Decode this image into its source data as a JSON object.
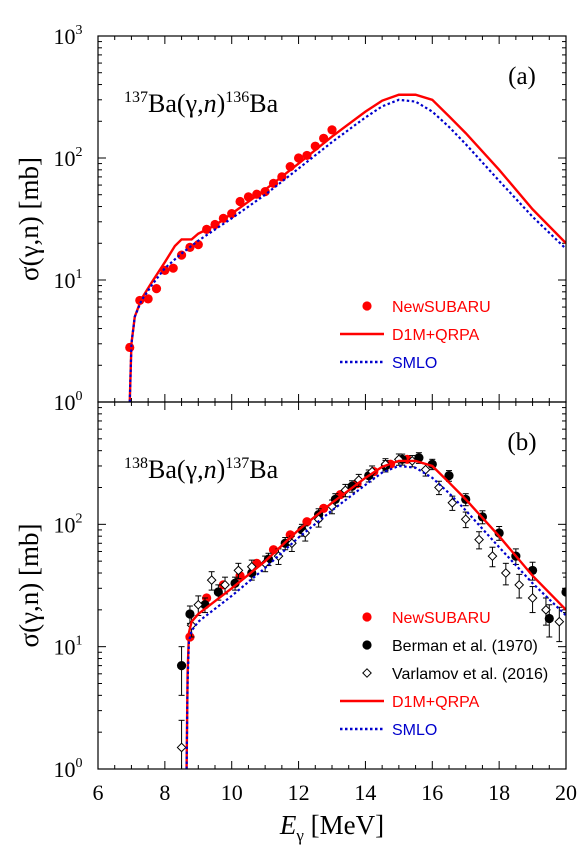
{
  "chart_data": [
    {
      "type": "scatter",
      "panel_label": "(a)",
      "reaction": {
        "pre_mass": "137",
        "target": "Ba",
        "channel_open": "(",
        "gamma": "γ",
        "comma": ",",
        "neutron": "n",
        "channel_close": ")",
        "post_mass": "136",
        "product": "Ba"
      },
      "ylabel": "σ(γ,n) [mb]",
      "y_scale": "log",
      "xlim": [
        6,
        20
      ],
      "ylim": [
        1,
        1000
      ],
      "ytick_labels": [
        {
          "mant": "10",
          "exp": "0"
        },
        {
          "mant": "10",
          "exp": "1"
        },
        {
          "mant": "10",
          "exp": "2"
        },
        {
          "mant": "10",
          "exp": "3"
        }
      ],
      "legend_position": "bottom-right",
      "legend": [
        {
          "name": "NewSUBARU",
          "color": "#ff0000",
          "marker": "filled-circle"
        },
        {
          "name": "D1M+QRPA",
          "color": "#ff0000",
          "marker": "solid-line"
        },
        {
          "name": "SMLO",
          "color": "#0000cc",
          "marker": "dotted-line"
        }
      ],
      "series": [
        {
          "name": "NewSUBARU",
          "kind": "points",
          "color": "#ff0000",
          "x": [
            6.95,
            7.25,
            7.5,
            7.75,
            8.0,
            8.25,
            8.5,
            8.75,
            9.0,
            9.25,
            9.5,
            9.75,
            10.0,
            10.25,
            10.5,
            10.75,
            11.0,
            11.25,
            11.5,
            11.75,
            12.0,
            12.25,
            12.5,
            12.75,
            13.0
          ],
          "y": [
            2.8,
            6.8,
            7.0,
            8.5,
            12.0,
            12.5,
            16.0,
            18.5,
            19.5,
            26.0,
            28.5,
            32.0,
            35.0,
            44.0,
            48.0,
            50.5,
            53.0,
            62.0,
            70.0,
            85.0,
            100.0,
            105.0,
            125.0,
            145.0,
            170.0
          ]
        },
        {
          "name": "D1M+QRPA",
          "kind": "line",
          "color": "#ff0000",
          "dash": "solid",
          "x": [
            6.95,
            7.0,
            7.1,
            7.3,
            7.6,
            8.0,
            8.3,
            8.5,
            8.8,
            9.0,
            9.5,
            10.0,
            11.0,
            12.0,
            13.0,
            14.0,
            14.5,
            15.0,
            15.5,
            16.0,
            16.5,
            17.0,
            18.0,
            19.0,
            20.0
          ],
          "y": [
            1.0,
            3.0,
            5.0,
            7.0,
            9.5,
            14.0,
            19.0,
            21.5,
            21.5,
            24.0,
            28.0,
            35.0,
            55.0,
            90.0,
            150.0,
            240.0,
            295.0,
            330.0,
            330.0,
            300.0,
            220.0,
            160.0,
            80.0,
            38.0,
            20.0
          ]
        },
        {
          "name": "SMLO",
          "kind": "line",
          "color": "#0000cc",
          "dash": "dotted",
          "x": [
            6.95,
            7.0,
            7.1,
            7.3,
            7.6,
            8.0,
            8.5,
            9.0,
            10.0,
            11.0,
            12.0,
            13.0,
            14.0,
            14.5,
            15.0,
            15.5,
            16.0,
            16.5,
            17.0,
            18.0,
            19.0,
            20.0
          ],
          "y": [
            1.0,
            3.0,
            5.0,
            6.8,
            9.0,
            12.5,
            16.5,
            21.0,
            32.0,
            50.0,
            82.0,
            135.0,
            215.0,
            265.0,
            300.0,
            290.0,
            240.0,
            180.0,
            130.0,
            65.0,
            33.0,
            18.0
          ]
        }
      ]
    },
    {
      "type": "scatter",
      "panel_label": "(b)",
      "reaction": {
        "pre_mass": "138",
        "target": "Ba",
        "channel_open": "(",
        "gamma": "γ",
        "comma": ",",
        "neutron": "n",
        "channel_close": ")",
        "post_mass": "137",
        "product": "Ba"
      },
      "ylabel": "σ(γ,n) [mb]",
      "xlabel": {
        "main": "E",
        "sub": "γ",
        "unit": " [MeV]"
      },
      "y_scale": "log",
      "xlim": [
        6,
        20
      ],
      "ylim": [
        1,
        1000
      ],
      "xtick_labels": [
        "6",
        "8",
        "10",
        "12",
        "14",
        "16",
        "18",
        "20"
      ],
      "ytick_labels": [
        {
          "mant": "10",
          "exp": "0"
        },
        {
          "mant": "10",
          "exp": "1"
        },
        {
          "mant": "10",
          "exp": "2"
        }
      ],
      "legend_position": "bottom-right",
      "legend": [
        {
          "name": "NewSUBARU",
          "color": "#ff0000",
          "marker": "filled-circle"
        },
        {
          "name": "Berman et al. (1970)",
          "color": "#000000",
          "marker": "filled-circle"
        },
        {
          "name": "Varlamov et al. (2016)",
          "color": "#000000",
          "marker": "open-diamond"
        },
        {
          "name": "D1M+QRPA",
          "color": "#ff0000",
          "marker": "solid-line"
        },
        {
          "name": "SMLO",
          "color": "#0000cc",
          "marker": "dotted-line"
        }
      ],
      "series": [
        {
          "name": "NewSUBARU",
          "kind": "points",
          "color": "#ff0000",
          "x": [
            8.75,
            9.25,
            9.75,
            10.25,
            10.75,
            11.25,
            11.75,
            12.25,
            12.75,
            13.25,
            13.75,
            14.25,
            14.75,
            15.25
          ],
          "y": [
            12.0,
            25.0,
            32.0,
            38.0,
            48.0,
            62.0,
            82.0,
            105.0,
            135.0,
            175.0,
            215.0,
            270.0,
            310.0,
            340.0
          ]
        },
        {
          "name": "Berman et al. (1970)",
          "kind": "points",
          "color": "#000000",
          "x": [
            8.5,
            8.75,
            9.2,
            9.6,
            10.1,
            10.6,
            11.1,
            11.6,
            12.1,
            12.6,
            13.1,
            13.6,
            14.1,
            14.6,
            15.1,
            15.6,
            16.0,
            16.5,
            17.0,
            17.5,
            18.0,
            18.5,
            19.0,
            19.5,
            20.0
          ],
          "y": [
            7.0,
            18.5,
            22.0,
            28.0,
            33.0,
            40.0,
            52.0,
            70.0,
            90.0,
            120.0,
            160.0,
            205.0,
            250.0,
            300.0,
            340.0,
            350.0,
            310.0,
            250.0,
            160.0,
            115.0,
            85.0,
            55.0,
            42.0,
            17.0,
            28.0
          ],
          "yerr": [
            3.0,
            3.0,
            3.0,
            4.0,
            4.0,
            5.0,
            6.0,
            8.0,
            10.0,
            14.0,
            18.0,
            22.0,
            28.0,
            32.0,
            35.0,
            35.0,
            30.0,
            25.0,
            18.0,
            14.0,
            11.0,
            8.0,
            7.0,
            5.0,
            9.0
          ]
        },
        {
          "name": "Varlamov et al. (2016)",
          "kind": "points",
          "color": "#000000",
          "open": true,
          "x": [
            8.5,
            8.8,
            9.0,
            9.4,
            9.8,
            10.2,
            10.6,
            11.0,
            11.4,
            11.8,
            12.2,
            12.6,
            13.0,
            13.4,
            13.8,
            14.2,
            14.6,
            15.0,
            15.4,
            15.8,
            16.2,
            16.6,
            17.0,
            17.4,
            17.8,
            18.2,
            18.6,
            19.0,
            19.4,
            19.8
          ],
          "y": [
            1.5,
            15.0,
            22.0,
            35.0,
            32.0,
            42.0,
            45.0,
            48.0,
            55.0,
            70.0,
            85.0,
            110.0,
            140.0,
            190.0,
            230.0,
            270.0,
            310.0,
            340.0,
            330.0,
            280.0,
            200.0,
            150.0,
            110.0,
            75.0,
            55.0,
            40.0,
            32.0,
            25.0,
            20.0,
            16.0
          ],
          "yerr": [
            1.0,
            3.0,
            4.0,
            6.0,
            5.0,
            6.0,
            6.0,
            7.0,
            8.0,
            10.0,
            12.0,
            15.0,
            18.0,
            22.0,
            26.0,
            30.0,
            34.0,
            36.0,
            35.0,
            32.0,
            25.0,
            20.0,
            16.0,
            12.0,
            10.0,
            8.0,
            7.0,
            6.0,
            5.0,
            5.0
          ]
        },
        {
          "name": "D1M+QRPA",
          "kind": "line",
          "color": "#ff0000",
          "dash": "solid",
          "x": [
            8.65,
            8.68,
            8.72,
            8.8,
            9.0,
            10.0,
            11.0,
            12.0,
            13.0,
            14.0,
            14.5,
            15.0,
            15.5,
            16.0,
            16.5,
            17.0,
            18.0,
            19.0,
            20.0
          ],
          "y": [
            1.0,
            6.0,
            13.0,
            16.0,
            18.5,
            30.0,
            50.0,
            90.0,
            150.0,
            240.0,
            295.0,
            330.0,
            330.0,
            300.0,
            220.0,
            160.0,
            80.0,
            38.0,
            20.0
          ]
        },
        {
          "name": "SMLO",
          "kind": "line",
          "color": "#0000cc",
          "dash": "dotted",
          "x": [
            8.65,
            8.68,
            8.72,
            8.8,
            9.0,
            10.0,
            11.0,
            12.0,
            13.0,
            14.0,
            14.5,
            15.0,
            15.5,
            16.0,
            16.5,
            17.0,
            18.0,
            19.0,
            20.0
          ],
          "y": [
            1.0,
            5.0,
            11.0,
            13.5,
            16.0,
            26.0,
            44.0,
            78.0,
            130.0,
            210.0,
            265.0,
            300.0,
            290.0,
            240.0,
            180.0,
            130.0,
            65.0,
            33.0,
            18.0
          ]
        }
      ]
    }
  ]
}
